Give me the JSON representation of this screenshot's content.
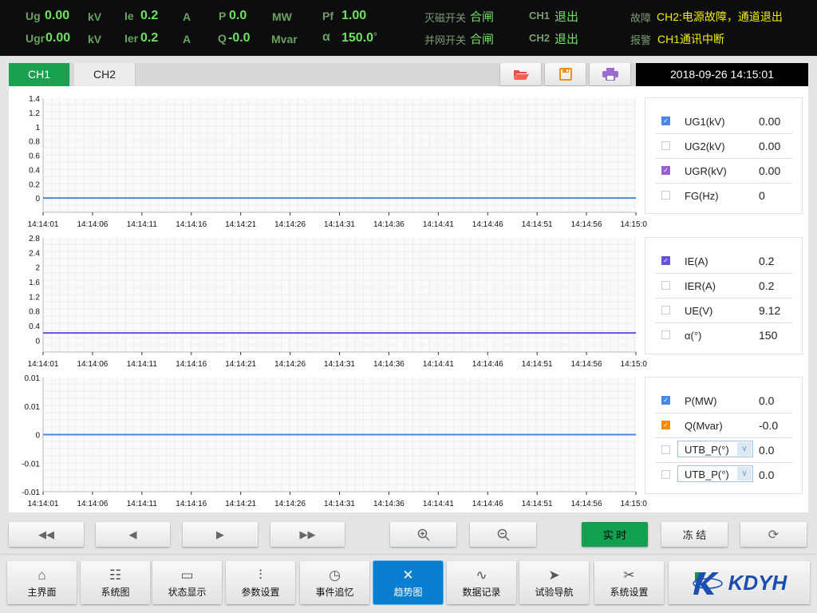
{
  "status": {
    "row1": [
      {
        "label": "Ug",
        "value": "0.00",
        "unit": "kV"
      },
      {
        "label": "Ie",
        "value": "0.2",
        "unit": "A"
      },
      {
        "label": "P",
        "value": "0.0",
        "unit": "MW"
      },
      {
        "label": "Pf",
        "value": "1.00",
        "unit": ""
      }
    ],
    "row2": [
      {
        "label": "Ugr",
        "value": "0.00",
        "unit": "kV"
      },
      {
        "label": "Ier",
        "value": "0.2",
        "unit": "A"
      },
      {
        "label": "Q",
        "value": "-0.0",
        "unit": "Mvar"
      },
      {
        "label": "α",
        "value": "150.0",
        "unit": "°"
      }
    ],
    "switch1_label": "灭磁开关",
    "switch1_value": "合闸",
    "switch2_label": "并网开关",
    "switch2_value": "合闸",
    "ch1_label": "CH1",
    "ch1_value": "退出",
    "ch2_label": "CH2",
    "ch2_value": "退出",
    "fault_label": "故障",
    "fault_value": "CH2:电源故障，通道退出",
    "alarm_label": "报警",
    "alarm_value": "CH1通讯中断"
  },
  "tabs": [
    {
      "label": "CH1",
      "active": true
    },
    {
      "label": "CH2",
      "active": false
    }
  ],
  "toolbar": {
    "open": "folder-open-icon",
    "save": "save-icon",
    "print": "print-icon"
  },
  "datetime": "2018-09-26  14:15:01",
  "colors": {
    "blue": "#4a86e8",
    "purple": "#6a4fd8",
    "green": "#10a050",
    "orange": "#f08c00",
    "checked_purple": "#9a5fd0"
  },
  "chart_data": [
    {
      "type": "line",
      "x": [
        "14:14:01",
        "14:14:06",
        "14:14:11",
        "14:14:16",
        "14:14:21",
        "14:14:26",
        "14:14:31",
        "14:14:36",
        "14:14:41",
        "14:14:46",
        "14:14:51",
        "14:14:56",
        "14:15:01"
      ],
      "yticks": [
        "1.4",
        "1.2",
        "1",
        "0.8",
        "0.6",
        "0.4",
        "0.2",
        "0"
      ],
      "ylim": [
        -0.2,
        1.4
      ],
      "grid": true,
      "series": [
        {
          "name": "UG1(kV)",
          "values": [
            0,
            0,
            0,
            0,
            0,
            0,
            0,
            0,
            0,
            0,
            0,
            0,
            0
          ],
          "color": "#4a86e8"
        }
      ],
      "legend": [
        {
          "name": "UG1(kV)",
          "value": "0.00",
          "checked": true,
          "color": "#4a86e8"
        },
        {
          "name": "UG2(kV)",
          "value": "0.00",
          "checked": false
        },
        {
          "name": "UGR(kV)",
          "value": "0.00",
          "checked": true,
          "color": "#9a5fd0"
        },
        {
          "name": "FG(Hz)",
          "value": "0",
          "checked": false
        }
      ]
    },
    {
      "type": "line",
      "x": [
        "14:14:01",
        "14:14:06",
        "14:14:11",
        "14:14:16",
        "14:14:21",
        "14:14:26",
        "14:14:31",
        "14:14:36",
        "14:14:41",
        "14:14:46",
        "14:14:51",
        "14:14:56",
        "14:15:01"
      ],
      "yticks": [
        "2.8",
        "2.4",
        "2",
        "1.6",
        "1.2",
        "0.8",
        "0.4",
        "0"
      ],
      "ylim": [
        -0.32,
        2.8
      ],
      "grid": true,
      "series": [
        {
          "name": "IE(A)",
          "values": [
            0.2,
            0.2,
            0.2,
            0.2,
            0.2,
            0.2,
            0.2,
            0.2,
            0.2,
            0.2,
            0.2,
            0.2,
            0.2
          ],
          "color": "#6a4fd8"
        }
      ],
      "legend": [
        {
          "name": "IE(A)",
          "value": "0.2",
          "checked": true,
          "color": "#6a4fd8"
        },
        {
          "name": "IER(A)",
          "value": "0.2",
          "checked": false
        },
        {
          "name": "UE(V)",
          "value": "9.12",
          "checked": false
        },
        {
          "name": "α(°)",
          "value": "150",
          "checked": false
        }
      ]
    },
    {
      "type": "line",
      "x": [
        "14:14:01",
        "14:14:06",
        "14:14:11",
        "14:14:16",
        "14:14:21",
        "14:14:26",
        "14:14:31",
        "14:14:36",
        "14:14:41",
        "14:14:46",
        "14:14:51",
        "14:14:56",
        "14:15:01"
      ],
      "yticks": [
        "0.01",
        "0.01",
        "0",
        "-0.01",
        "-0.01"
      ],
      "ylim": [
        -0.01,
        0.01
      ],
      "grid": true,
      "series": [
        {
          "name": "P(MW)",
          "values": [
            0,
            0,
            0,
            0,
            0,
            0,
            0,
            0,
            0,
            0,
            0,
            0,
            0
          ],
          "color": "#4a86e8"
        }
      ],
      "legend": [
        {
          "name": "P(MW)",
          "value": "0.0",
          "checked": true,
          "color": "#4a86e8"
        },
        {
          "name": "Q(Mvar)",
          "value": "-0.0",
          "checked": true,
          "color": "#f08c00"
        },
        {
          "name": "UTB_P(°)",
          "value": "0.0",
          "checked": false,
          "select": true
        },
        {
          "name": "UTB_P(°)",
          "value": "0.0",
          "checked": false,
          "select": true
        }
      ]
    }
  ],
  "controls": {
    "first": "fast-backward-icon",
    "prev": "step-backward-icon",
    "next": "step-forward-icon",
    "last": "fast-forward-icon",
    "zoom_in": "zoom-in-icon",
    "zoom_out": "zoom-out-icon",
    "realtime": "实 时",
    "freeze": "冻 结",
    "refresh": "refresh-icon"
  },
  "nav": [
    {
      "label": "主界面",
      "icon": "home-icon"
    },
    {
      "label": "系统图",
      "icon": "system-diagram-icon"
    },
    {
      "label": "状态显示",
      "icon": "monitor-icon"
    },
    {
      "label": "参数设置",
      "icon": "sliders-icon"
    },
    {
      "label": "事件追忆",
      "icon": "calendar-clock-icon"
    },
    {
      "label": "趋势图",
      "icon": "trend-icon",
      "active": true
    },
    {
      "label": "数据记录",
      "icon": "pulse-icon"
    },
    {
      "label": "试验导航",
      "icon": "navigation-icon"
    },
    {
      "label": "系统设置",
      "icon": "tools-icon"
    }
  ],
  "logo": {
    "text": "KDYH"
  }
}
